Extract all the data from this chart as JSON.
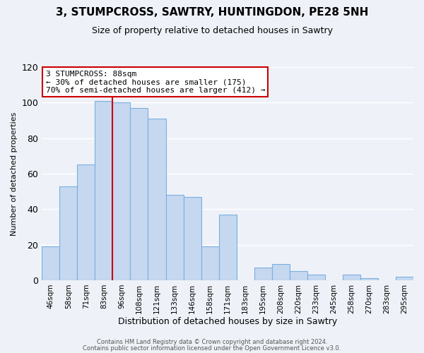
{
  "title": "3, STUMPCROSS, SAWTRY, HUNTINGDON, PE28 5NH",
  "subtitle": "Size of property relative to detached houses in Sawtry",
  "xlabel": "Distribution of detached houses by size in Sawtry",
  "ylabel": "Number of detached properties",
  "bin_labels": [
    "46sqm",
    "58sqm",
    "71sqm",
    "83sqm",
    "96sqm",
    "108sqm",
    "121sqm",
    "133sqm",
    "146sqm",
    "158sqm",
    "171sqm",
    "183sqm",
    "195sqm",
    "208sqm",
    "220sqm",
    "233sqm",
    "245sqm",
    "258sqm",
    "270sqm",
    "283sqm",
    "295sqm"
  ],
  "bar_values": [
    19,
    53,
    65,
    101,
    100,
    97,
    91,
    48,
    47,
    19,
    37,
    0,
    7,
    9,
    5,
    3,
    0,
    3,
    1,
    0,
    2
  ],
  "bar_color": "#c5d8f0",
  "bar_edge_color": "#7aafdf",
  "vline_x_idx": 4,
  "vline_color": "#cc0000",
  "ylim": [
    0,
    120
  ],
  "yticks": [
    0,
    20,
    40,
    60,
    80,
    100,
    120
  ],
  "annotation_title": "3 STUMPCROSS: 88sqm",
  "annotation_line1": "← 30% of detached houses are smaller (175)",
  "annotation_line2": "70% of semi-detached houses are larger (412) →",
  "annotation_box_color": "#ffffff",
  "annotation_box_edge": "#cc0000",
  "footer1": "Contains HM Land Registry data © Crown copyright and database right 2024.",
  "footer2": "Contains public sector information licensed under the Open Government Licence v3.0.",
  "bg_color": "#eef2f8",
  "grid_color": "#ffffff",
  "title_fontsize": 11,
  "subtitle_fontsize": 9,
  "ylabel_fontsize": 8,
  "xlabel_fontsize": 9,
  "tick_fontsize": 7.5,
  "ann_fontsize": 8,
  "footer_fontsize": 6
}
